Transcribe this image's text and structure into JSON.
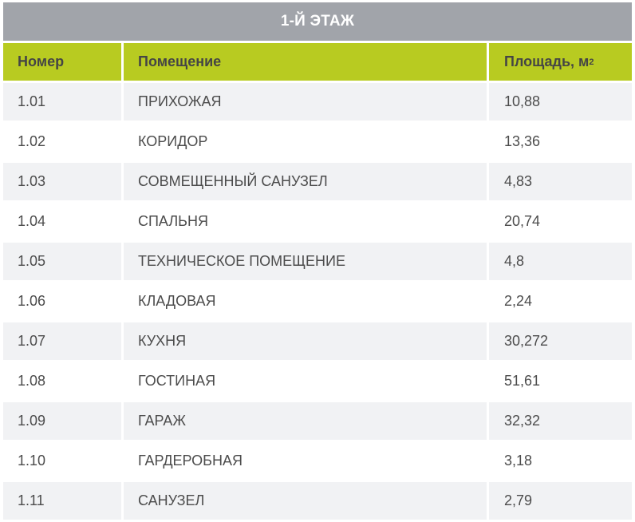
{
  "title": "1-Й ЭТАЖ",
  "columns": {
    "number": "Номер",
    "room": "Помещение",
    "area": "Площадь, м",
    "area_unit_power": "2"
  },
  "rows": [
    {
      "number": "1.01",
      "room": "ПРИХОЖАЯ",
      "area": "10,88"
    },
    {
      "number": "1.02",
      "room": "КОРИДОР",
      "area": "13,36"
    },
    {
      "number": "1.03",
      "room": "СОВМЕЩЕННЫЙ САНУЗЕЛ",
      "area": "4,83"
    },
    {
      "number": "1.04",
      "room": "СПАЛЬНЯ",
      "area": "20,74"
    },
    {
      "number": "1.05",
      "room": "ТЕХНИЧЕСКОЕ ПОМЕЩЕНИЕ",
      "area": "4,8"
    },
    {
      "number": "1.06",
      "room": "КЛАДОВАЯ",
      "area": "2,24"
    },
    {
      "number": "1.07",
      "room": "КУХНЯ",
      "area": "30,272"
    },
    {
      "number": "1.08",
      "room": "ГОСТИНАЯ",
      "area": "51,61"
    },
    {
      "number": "1.09",
      "room": "ГАРАЖ",
      "area": "32,32"
    },
    {
      "number": "1.10",
      "room": "ГАРДЕРОБНАЯ",
      "area": "3,18"
    },
    {
      "number": "1.11",
      "room": "САНУЗЕЛ",
      "area": "2,79"
    }
  ],
  "colors": {
    "title_bg": "#a1a4aa",
    "header_bg": "#b8cb21",
    "row_shaded": "#f1f2f4",
    "text": "#4c4c4c"
  }
}
